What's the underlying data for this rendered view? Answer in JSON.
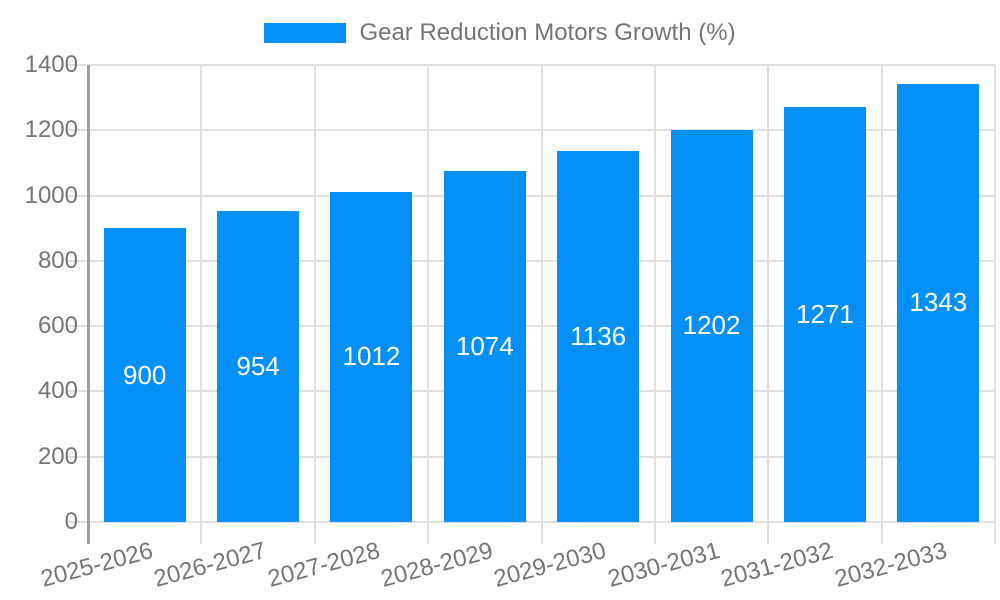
{
  "legend": {
    "label": "Gear Reduction Motors Growth (%)"
  },
  "chart_data": {
    "type": "bar",
    "title": "Gear Reduction Motors Growth (%)",
    "series_name": "Gear Reduction Motors Growth (%)",
    "categories": [
      "2025-2026",
      "2026-2027",
      "2027-2028",
      "2028-2029",
      "2029-2030",
      "2030-2031",
      "2031-2032",
      "2032-2033"
    ],
    "values": [
      900,
      954,
      1012,
      1074,
      1136,
      1202,
      1271,
      1343
    ],
    "value_labels": [
      "900",
      "954",
      "1012",
      "1074",
      "1136",
      "1202",
      "1271",
      "1343"
    ],
    "xlabel": "",
    "ylabel": "",
    "ylim": [
      0,
      1400
    ],
    "yticks": [
      0,
      200,
      400,
      600,
      800,
      1000,
      1200,
      1400
    ],
    "grid": true,
    "legend_position": "top",
    "x_label_rotation_deg": -15,
    "colors": {
      "bar": "#0590F8",
      "axis_text": "#757575",
      "value_text": "#ffffff",
      "grid_line": "#e0e0e0",
      "axis_line": "#9e9e9e"
    }
  }
}
